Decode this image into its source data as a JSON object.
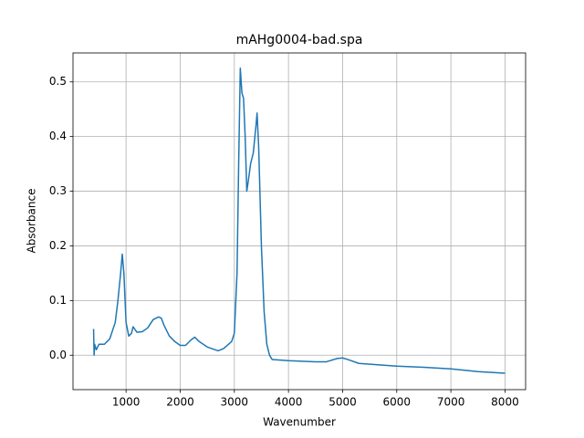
{
  "chart_data": {
    "type": "line",
    "title": "mAHg0004-bad.spa",
    "x_label": "Wavenumber",
    "y_label": "Absorbance",
    "x": [
      400,
      410,
      420,
      450,
      500,
      600,
      700,
      800,
      850,
      900,
      930,
      960,
      1000,
      1050,
      1100,
      1130,
      1200,
      1300,
      1400,
      1500,
      1600,
      1650,
      1700,
      1800,
      1900,
      2000,
      2100,
      2200,
      2270,
      2350,
      2500,
      2700,
      2800,
      2950,
      3000,
      3050,
      3080,
      3110,
      3140,
      3170,
      3200,
      3230,
      3260,
      3300,
      3350,
      3400,
      3420,
      3450,
      3500,
      3550,
      3600,
      3650,
      3700,
      4000,
      4500,
      4700,
      4900,
      5000,
      5100,
      5300,
      6000,
      6500,
      7000,
      7500,
      8000
    ],
    "series": [
      {
        "name": "Absorbance",
        "color": "#1f77b4",
        "values": [
          0.048,
          0.0,
          0.02,
          0.01,
          0.02,
          0.02,
          0.03,
          0.06,
          0.1,
          0.15,
          0.185,
          0.15,
          0.06,
          0.035,
          0.04,
          0.052,
          0.042,
          0.043,
          0.05,
          0.065,
          0.07,
          0.068,
          0.055,
          0.035,
          0.025,
          0.018,
          0.018,
          0.028,
          0.033,
          0.025,
          0.015,
          0.008,
          0.012,
          0.025,
          0.04,
          0.15,
          0.35,
          0.525,
          0.48,
          0.47,
          0.4,
          0.3,
          0.32,
          0.35,
          0.37,
          0.42,
          0.443,
          0.38,
          0.2,
          0.08,
          0.02,
          0.0,
          -0.008,
          -0.01,
          -0.012,
          -0.012,
          -0.006,
          -0.005,
          -0.008,
          -0.015,
          -0.02,
          -0.022,
          -0.025,
          -0.03,
          -0.033
        ]
      }
    ],
    "xlim": [
      20,
      8380
    ],
    "ylim": [
      -0.063,
      0.553
    ],
    "xticks": [
      1000,
      2000,
      3000,
      4000,
      5000,
      6000,
      7000,
      8000
    ],
    "yticks": [
      {
        "value": 0,
        "label": "0.0"
      },
      0.1,
      0.2,
      0.3,
      0.4,
      0.5
    ],
    "grid": true
  }
}
